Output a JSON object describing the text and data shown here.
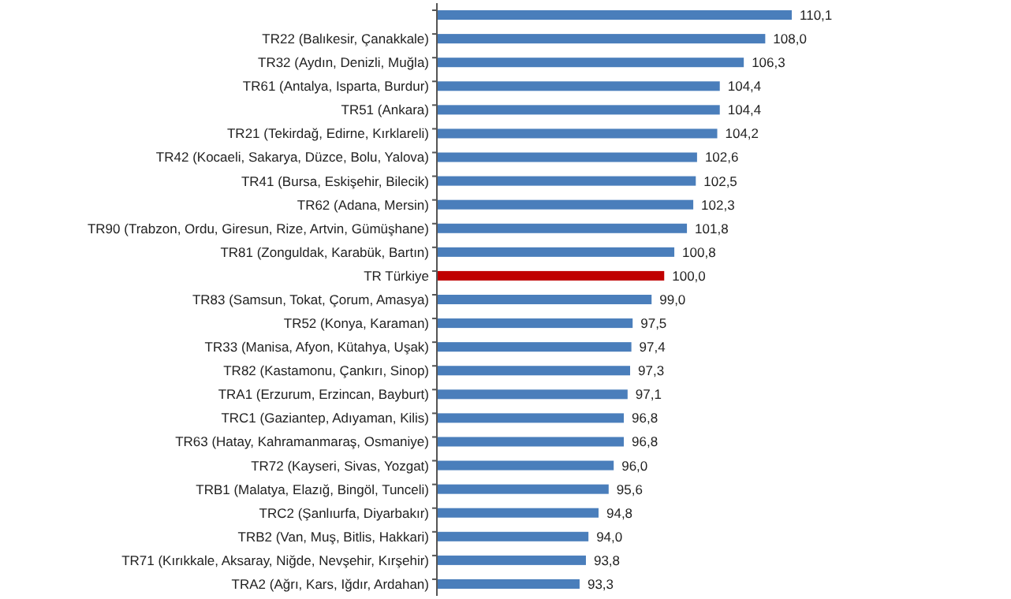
{
  "chart_data": {
    "type": "bar",
    "orientation": "horizontal",
    "categories": [
      null,
      "TR22 (Balıkesir, Çanakkale)",
      "TR32 (Aydın, Denizli, Muğla)",
      "TR61 (Antalya, Isparta, Burdur)",
      "TR51 (Ankara)",
      "TR21 (Tekirdağ, Edirne, Kırklareli)",
      "TR42 (Kocaeli, Sakarya, Düzce, Bolu, Yalova)",
      "TR41 (Bursa, Eskişehir, Bilecik)",
      "TR62 (Adana, Mersin)",
      "TR90 (Trabzon, Ordu, Giresun, Rize, Artvin, Gümüşhane)",
      "TR81 (Zonguldak, Karabük, Bartın)",
      "TR Türkiye",
      "TR83 (Samsun, Tokat, Çorum, Amasya)",
      "TR52 (Konya, Karaman)",
      "TR33 (Manisa, Afyon, Kütahya, Uşak)",
      "TR82 (Kastamonu, Çankırı, Sinop)",
      "TRA1 (Erzurum, Erzincan, Bayburt)",
      "TRC1 (Gaziantep, Adıyaman, Kilis)",
      "TR63 (Hatay, Kahramanmaraş, Osmaniye)",
      "TR72 (Kayseri, Sivas, Yozgat)",
      "TRB1 (Malatya, Elazığ, Bingöl, Tunceli)",
      "TRC2 (Şanlıurfa, Diyarbakır)",
      "TRB2 (Van, Muş, Bitlis, Hakkari)",
      "TR71 (Kırıkkale, Aksaray, Niğde, Nevşehir, Kırşehir)",
      "TRA2 (Ağrı, Kars, Iğdır, Ardahan)"
    ],
    "values": [
      110.1,
      108.0,
      106.3,
      104.4,
      104.4,
      104.2,
      102.6,
      102.5,
      102.3,
      101.8,
      100.8,
      100.0,
      99.0,
      97.5,
      97.4,
      97.3,
      97.1,
      96.8,
      96.8,
      96.0,
      95.6,
      94.8,
      94.0,
      93.8,
      93.3
    ],
    "value_labels": [
      "110,1",
      "108,0",
      "106,3",
      "104,4",
      "104,4",
      "104,2",
      "102,6",
      "102,5",
      "102,3",
      "101,8",
      "100,8",
      "100,0",
      "99,0",
      "97,5",
      "97,4",
      "97,3",
      "97,1",
      "96,8",
      "96,8",
      "96,0",
      "95,6",
      "94,8",
      "94,0",
      "93,8",
      "93,3"
    ],
    "colors": [
      "#4a7ebb",
      "#4a7ebb",
      "#4a7ebb",
      "#4a7ebb",
      "#4a7ebb",
      "#4a7ebb",
      "#4a7ebb",
      "#4a7ebb",
      "#4a7ebb",
      "#4a7ebb",
      "#4a7ebb",
      "#c00000",
      "#4a7ebb",
      "#4a7ebb",
      "#4a7ebb",
      "#4a7ebb",
      "#4a7ebb",
      "#4a7ebb",
      "#4a7ebb",
      "#4a7ebb",
      "#4a7ebb",
      "#4a7ebb",
      "#4a7ebb",
      "#4a7ebb",
      "#4a7ebb"
    ],
    "xlim": [
      82,
      110.1
    ]
  }
}
